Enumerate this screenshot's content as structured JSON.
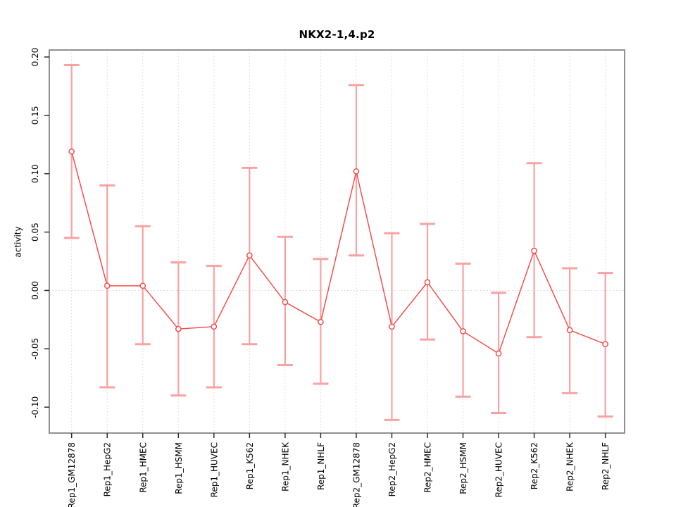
{
  "chart_data": {
    "type": "line",
    "title": "NKX2-1,4.p2",
    "xlabel": "",
    "ylabel": "activity",
    "categories": [
      "Rep1_GM12878",
      "Rep1_HepG2",
      "Rep1_HMEC",
      "Rep1_HSMM",
      "Rep1_HUVEC",
      "Rep1_K562",
      "Rep1_NHEK",
      "Rep1_NHLF",
      "Rep2_GM12878",
      "Rep2_HepG2",
      "Rep2_HMEC",
      "Rep2_HSMM",
      "Rep2_HUVEC",
      "Rep2_K562",
      "Rep2_NHEK",
      "Rep2_NHLF"
    ],
    "series": [
      {
        "name": "activity",
        "marker": "open-circle",
        "values": [
          0.119,
          0.004,
          0.004,
          -0.033,
          -0.031,
          0.03,
          -0.01,
          -0.027,
          0.102,
          -0.031,
          0.007,
          -0.035,
          -0.054,
          0.034,
          -0.034,
          -0.046
        ],
        "err_high": [
          0.193,
          0.09,
          0.055,
          0.024,
          0.021,
          0.105,
          0.046,
          0.027,
          0.176,
          0.049,
          0.057,
          0.023,
          -0.002,
          0.109,
          0.019,
          0.015
        ],
        "err_low": [
          0.045,
          -0.083,
          -0.046,
          -0.09,
          -0.083,
          -0.046,
          -0.064,
          -0.08,
          0.03,
          -0.111,
          -0.042,
          -0.091,
          -0.105,
          -0.04,
          -0.088,
          -0.108
        ]
      }
    ],
    "yticks": [
      0.2,
      0.15,
      0.1,
      0.05,
      0.0,
      -0.05,
      -0.1
    ],
    "ytick_labels": [
      "0.20",
      "0.15",
      "0.10",
      "0.05",
      "0.00",
      "-0.05",
      "-0.10"
    ],
    "ylim": [
      -0.1222,
      0.206
    ],
    "grid": {
      "vertical_at_categories": true,
      "horizontal_at_zero": true,
      "style": "dotted"
    },
    "legend": "none",
    "colors": {
      "point": "#F24F4F",
      "series_line": "#F24F4F",
      "error_bar": "#F9A2A2",
      "grid": "#D6D6D6",
      "box": "#909090",
      "tick": "#2B2B2B",
      "text": "#000000",
      "background": "#FFFFFF"
    }
  }
}
